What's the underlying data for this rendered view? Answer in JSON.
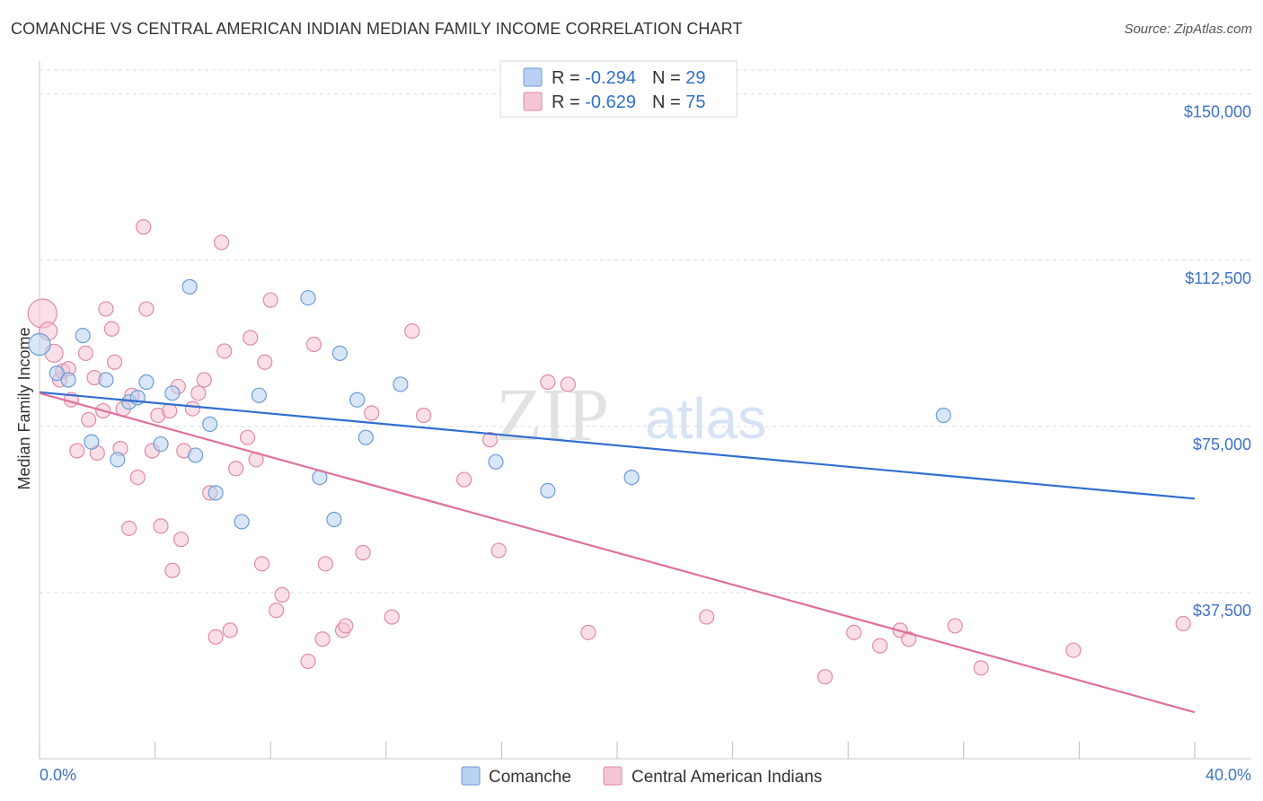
{
  "title": "COMANCHE VS CENTRAL AMERICAN INDIAN MEDIAN FAMILY INCOME CORRELATION CHART",
  "source": "Source: ZipAtlas.com",
  "watermark": {
    "zip": "ZIP",
    "atlas": "atlas"
  },
  "colors": {
    "blue_fill": "#b8d1f3",
    "blue_stroke": "#6c9bd8",
    "blue_line": "#2f6fd0",
    "pink_fill": "#f6c5d4",
    "pink_stroke": "#e08aa6",
    "pink_line": "#e0709a",
    "tick_text": "#3d72c6",
    "grid": "#dcdcdc"
  },
  "legend": {
    "rows": [
      {
        "r_label": "R = ",
        "r_value": "-0.294",
        "n_label": "N = ",
        "n_value": "29"
      },
      {
        "r_label": "R = ",
        "r_value": "-0.629",
        "n_label": "N = ",
        "n_value": "75"
      }
    ]
  },
  "bottom_legend": [
    "Comanche",
    "Central American Indians"
  ],
  "chart_data": {
    "type": "scatter",
    "title": "COMANCHE VS CENTRAL AMERICAN INDIAN MEDIAN FAMILY INCOME CORRELATION CHART",
    "xlabel": "",
    "ylabel": "Median Family Income",
    "xlim": [
      0,
      40
    ],
    "ylim": [
      0,
      155000
    ],
    "x_tick_labels": [
      "0.0%",
      "40.0%"
    ],
    "y_ticks": [
      37500,
      75000,
      112500,
      150000
    ],
    "y_tick_labels": [
      "$37,500",
      "$75,000",
      "$112,500",
      "$150,000"
    ],
    "grid": true,
    "legend_position": "top-center",
    "series": [
      {
        "name": "Comanche",
        "r": -0.294,
        "n": 29,
        "trend": {
          "x": [
            0,
            40
          ],
          "y": [
            82700,
            58700
          ]
        },
        "points": [
          [
            0.0,
            93500,
            12
          ],
          [
            0.6,
            87000,
            8
          ],
          [
            1.0,
            85500,
            8
          ],
          [
            1.5,
            95500,
            8
          ],
          [
            1.8,
            71500,
            8
          ],
          [
            2.3,
            85500,
            8
          ],
          [
            2.7,
            67500,
            8
          ],
          [
            3.1,
            80500,
            8
          ],
          [
            3.4,
            81500,
            8
          ],
          [
            3.7,
            85000,
            8
          ],
          [
            4.2,
            71000,
            8
          ],
          [
            4.6,
            82500,
            8
          ],
          [
            5.2,
            106500,
            8
          ],
          [
            5.4,
            68500,
            8
          ],
          [
            5.9,
            75500,
            8
          ],
          [
            6.1,
            60000,
            8
          ],
          [
            7.0,
            53500,
            8
          ],
          [
            7.6,
            82000,
            8
          ],
          [
            9.3,
            104000,
            8
          ],
          [
            9.7,
            63500,
            8
          ],
          [
            10.2,
            54000,
            8
          ],
          [
            10.4,
            91500,
            8
          ],
          [
            11.0,
            81000,
            8
          ],
          [
            11.3,
            72500,
            8
          ],
          [
            12.5,
            84500,
            8
          ],
          [
            15.8,
            67000,
            8
          ],
          [
            17.6,
            60500,
            8
          ],
          [
            20.5,
            63500,
            8
          ],
          [
            31.3,
            77500,
            8
          ]
        ]
      },
      {
        "name": "Central American Indians",
        "r": -0.629,
        "n": 75,
        "trend": {
          "x": [
            0,
            40
          ],
          "y": [
            82500,
            10500
          ]
        },
        "points": [
          [
            0.1,
            100500,
            16
          ],
          [
            0.3,
            96500,
            10
          ],
          [
            0.5,
            91500,
            10
          ],
          [
            0.7,
            85500,
            8
          ],
          [
            0.8,
            87500,
            8
          ],
          [
            1.0,
            88000,
            8
          ],
          [
            1.1,
            81000,
            8
          ],
          [
            1.3,
            69500,
            8
          ],
          [
            1.6,
            91500,
            8
          ],
          [
            1.7,
            76500,
            8
          ],
          [
            1.9,
            86000,
            8
          ],
          [
            2.0,
            69000,
            8
          ],
          [
            2.2,
            78500,
            8
          ],
          [
            2.3,
            101500,
            8
          ],
          [
            2.5,
            97000,
            8
          ],
          [
            2.6,
            89500,
            8
          ],
          [
            2.8,
            70000,
            8
          ],
          [
            2.9,
            79000,
            8
          ],
          [
            3.1,
            52000,
            8
          ],
          [
            3.2,
            82000,
            8
          ],
          [
            3.4,
            63500,
            8
          ],
          [
            3.6,
            120000,
            8
          ],
          [
            3.7,
            101500,
            8
          ],
          [
            3.9,
            69500,
            8
          ],
          [
            4.1,
            77500,
            8
          ],
          [
            4.2,
            52500,
            8
          ],
          [
            4.5,
            78500,
            8
          ],
          [
            4.6,
            42500,
            8
          ],
          [
            4.8,
            84000,
            8
          ],
          [
            4.9,
            49500,
            8
          ],
          [
            5.0,
            69500,
            8
          ],
          [
            5.3,
            79000,
            8
          ],
          [
            5.5,
            82500,
            8
          ],
          [
            5.7,
            85500,
            8
          ],
          [
            5.9,
            60000,
            8
          ],
          [
            6.1,
            27500,
            8
          ],
          [
            6.3,
            116500,
            8
          ],
          [
            6.4,
            92000,
            8
          ],
          [
            6.6,
            29000,
            8
          ],
          [
            6.8,
            65500,
            8
          ],
          [
            7.2,
            72500,
            8
          ],
          [
            7.3,
            95000,
            8
          ],
          [
            7.5,
            67500,
            8
          ],
          [
            7.7,
            44000,
            8
          ],
          [
            7.8,
            89500,
            8
          ],
          [
            8.0,
            103500,
            8
          ],
          [
            8.2,
            33500,
            8
          ],
          [
            8.4,
            37000,
            8
          ],
          [
            9.3,
            22000,
            8
          ],
          [
            9.5,
            93500,
            8
          ],
          [
            9.8,
            27000,
            8
          ],
          [
            9.9,
            44000,
            8
          ],
          [
            10.5,
            29000,
            8
          ],
          [
            10.6,
            30000,
            8
          ],
          [
            11.2,
            46500,
            8
          ],
          [
            11.5,
            78000,
            8
          ],
          [
            12.2,
            32000,
            8
          ],
          [
            12.9,
            96500,
            8
          ],
          [
            13.3,
            77500,
            8
          ],
          [
            14.7,
            63000,
            8
          ],
          [
            15.6,
            72000,
            8
          ],
          [
            15.9,
            47000,
            8
          ],
          [
            17.6,
            85000,
            8
          ],
          [
            18.3,
            84500,
            8
          ],
          [
            19.0,
            28500,
            8
          ],
          [
            23.1,
            32000,
            8
          ],
          [
            27.2,
            18500,
            8
          ],
          [
            28.2,
            28500,
            8
          ],
          [
            29.1,
            25500,
            8
          ],
          [
            29.8,
            29000,
            8
          ],
          [
            30.1,
            27000,
            8
          ],
          [
            31.7,
            30000,
            8
          ],
          [
            32.6,
            20500,
            8
          ],
          [
            35.8,
            24500,
            8
          ],
          [
            39.6,
            30500,
            8
          ]
        ]
      }
    ]
  }
}
